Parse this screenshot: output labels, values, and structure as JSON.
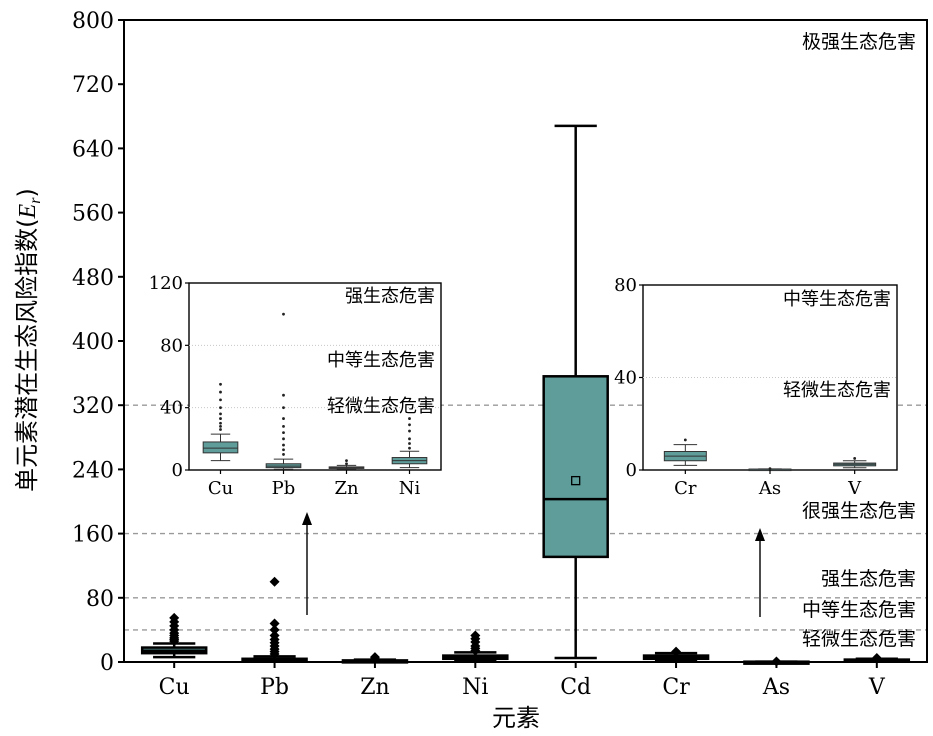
{
  "chart_data": {
    "type": "box",
    "xlabel": "元素",
    "ylabel": "单元素潜在生态风险指数(E_r)",
    "ylim": [
      0,
      800
    ],
    "yticks": [
      0,
      80,
      160,
      240,
      320,
      400,
      480,
      560,
      640,
      720,
      800
    ],
    "categories": [
      "Cu",
      "Pb",
      "Zn",
      "Ni",
      "Cd",
      "Cr",
      "As",
      "V"
    ],
    "boxes": [
      {
        "name": "Cu",
        "whislo": 6,
        "q1": 11,
        "median": 14,
        "q3": 18,
        "whishi": 23,
        "outliers": [
          26,
          28,
          30,
          33,
          36,
          40,
          45,
          50,
          55
        ]
      },
      {
        "name": "Pb",
        "whislo": 0.5,
        "q1": 1.5,
        "median": 2.5,
        "q3": 4,
        "whishi": 7,
        "outliers": [
          10,
          13,
          16,
          20,
          24,
          28,
          33,
          40,
          48,
          100
        ]
      },
      {
        "name": "Zn",
        "whislo": 0.5,
        "q1": 1,
        "median": 1.5,
        "q3": 2,
        "whishi": 3,
        "outliers": [
          4,
          6
        ]
      },
      {
        "name": "Ni",
        "whislo": 1.5,
        "q1": 4,
        "median": 6,
        "q3": 8,
        "whishi": 12,
        "outliers": [
          14,
          17,
          20,
          25,
          29,
          33
        ]
      },
      {
        "name": "Cd",
        "whislo": 5,
        "q1": 131,
        "median": 203,
        "q3": 356,
        "whishi": 668,
        "mean": 226,
        "outliers": []
      },
      {
        "name": "Cr",
        "whislo": 2,
        "q1": 4,
        "median": 6,
        "q3": 8,
        "whishi": 11,
        "outliers": [
          13
        ]
      },
      {
        "name": "As",
        "whislo": 0.1,
        "q1": 0.2,
        "median": 0.3,
        "q3": 0.4,
        "whishi": 0.5,
        "outliers": [
          0.6
        ]
      },
      {
        "name": "V",
        "whislo": 1,
        "q1": 1.8,
        "median": 2.5,
        "q3": 3,
        "whishi": 4,
        "outliers": [
          5
        ]
      }
    ],
    "thresholds": [
      {
        "value": 40,
        "label": "轻微生态危害"
      },
      {
        "value": 80,
        "label": "中等生态危害"
      },
      {
        "value": 160,
        "label": "强生态危害"
      },
      {
        "value": 320,
        "label": "很强生态危害"
      },
      {
        "value": 800,
        "label": "极强生态危害"
      }
    ],
    "grid": false,
    "box_color": "#5e9d9a",
    "insets": [
      {
        "categories": [
          "Cu",
          "Pb",
          "Zn",
          "Ni"
        ],
        "ylim": [
          0,
          120
        ],
        "yticks": [
          0,
          40,
          80,
          120
        ],
        "lines": [
          40,
          80
        ],
        "labels": [
          "轻微生态危害",
          "中等生态危害",
          "强生态危害"
        ]
      },
      {
        "categories": [
          "Cr",
          "As",
          "V"
        ],
        "ylim": [
          0,
          80
        ],
        "yticks": [
          0,
          40,
          80
        ],
        "lines": [
          40
        ],
        "labels": [
          "轻微生态危害",
          "中等生态危害"
        ]
      }
    ]
  }
}
